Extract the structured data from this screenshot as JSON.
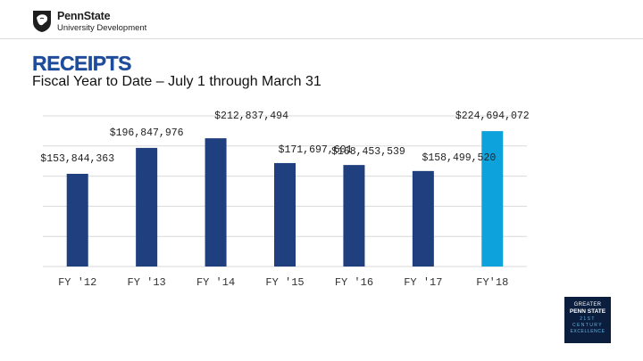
{
  "header": {
    "logo_line1": "PennState",
    "logo_line2": "University Development"
  },
  "slide": {
    "title": "RECEIPTS",
    "subtitle": "Fiscal Year to Date – July 1 through March 31"
  },
  "badge": {
    "lines": [
      "GREATER",
      "PENN STATE",
      "21ST",
      "CENTURY",
      "EXCELLENCE"
    ]
  },
  "colors": {
    "title": "#1e4b9b",
    "bar": "#1f3f7f",
    "bar_highlight": "#0ea2dc",
    "gridline": "#d9d9d9"
  },
  "chart_data": {
    "type": "bar",
    "title": "",
    "xlabel": "",
    "ylabel": "",
    "categories": [
      "FY '12",
      "FY '13",
      "FY '14",
      "FY '15",
      "FY '16",
      "FY '17",
      "FY'18"
    ],
    "values": [
      153844363,
      196847976,
      212837494,
      171697601,
      168453539,
      158499520,
      224694072
    ],
    "data_labels": [
      "$153,844,363",
      "$196,847,976",
      "$212,837,494",
      "$171,697,601",
      "$168,453,539",
      "$158,499,520",
      "$224,694,072"
    ],
    "highlight_index": 6,
    "ylim": [
      0,
      250000000
    ],
    "grid": true,
    "legend": "none"
  }
}
